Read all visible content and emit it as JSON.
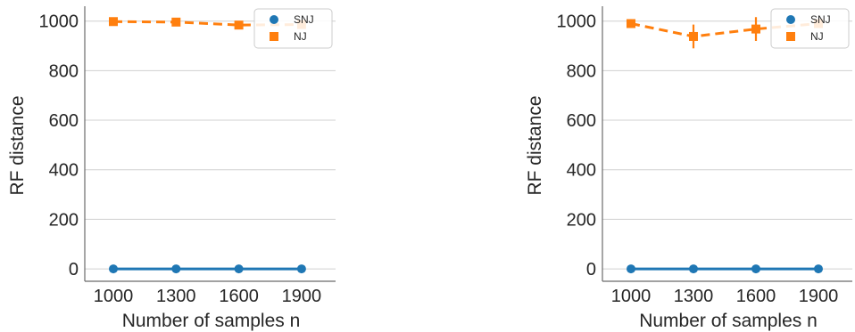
{
  "colors": {
    "SNJ": "#1f77b4",
    "NJ": "#ff7f0e",
    "grid": "#d0d0d0",
    "axis": "#6b6b6b"
  },
  "chart_data": [
    {
      "type": "line",
      "xlabel": "Number of samples n",
      "ylabel": "RF distance",
      "categories": [
        "1000",
        "1300",
        "1600",
        "1900"
      ],
      "ylim": [
        -50,
        1060
      ],
      "yticks": [
        "0",
        "200",
        "400",
        "600",
        "800",
        "1000"
      ],
      "grid": "horizontal",
      "legend": "top-right",
      "series": [
        {
          "name": "SNJ",
          "marker": "circle",
          "style": "solid",
          "values": [
            0,
            0,
            0,
            0
          ],
          "err": [
            0,
            0,
            0,
            0
          ]
        },
        {
          "name": "NJ",
          "marker": "square",
          "style": "dashed",
          "values": [
            998,
            996,
            984,
            986
          ],
          "err": [
            4,
            6,
            14,
            8
          ]
        }
      ]
    },
    {
      "type": "line",
      "xlabel": "Number of samples n",
      "ylabel": "RF distance",
      "categories": [
        "1000",
        "1300",
        "1600",
        "1900"
      ],
      "ylim": [
        -50,
        1060
      ],
      "yticks": [
        "0",
        "200",
        "400",
        "600",
        "800",
        "1000"
      ],
      "grid": "horizontal",
      "legend": "top-right",
      "series": [
        {
          "name": "SNJ",
          "marker": "circle",
          "style": "solid",
          "values": [
            0,
            0,
            0,
            0
          ],
          "err": [
            0,
            0,
            0,
            0
          ]
        },
        {
          "name": "NJ",
          "marker": "square",
          "style": "dashed",
          "values": [
            990,
            938,
            968,
            990
          ],
          "err": [
            18,
            48,
            48,
            10
          ]
        }
      ]
    }
  ]
}
